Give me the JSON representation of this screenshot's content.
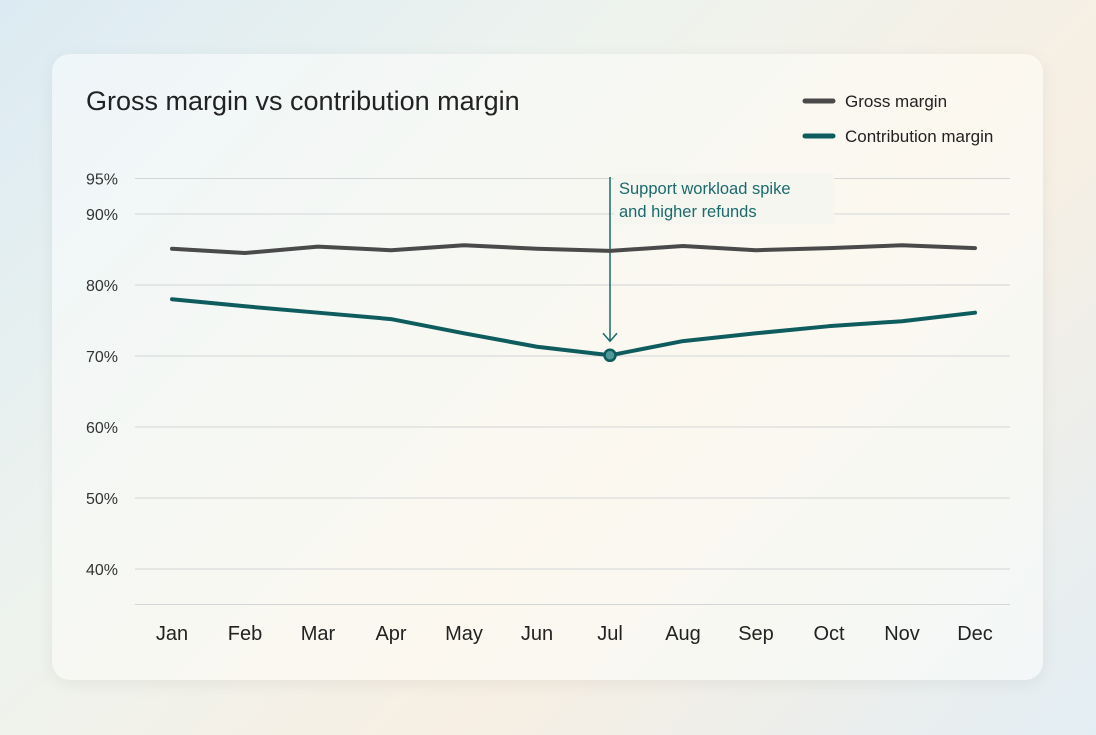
{
  "chart_data": {
    "type": "line",
    "title": "Gross margin vs contribution margin",
    "categories": [
      "Jan",
      "Feb",
      "Mar",
      "Apr",
      "May",
      "Jun",
      "Jul",
      "Aug",
      "Sep",
      "Oct",
      "Nov",
      "Dec"
    ],
    "series": [
      {
        "name": "Gross margin",
        "color": "#4a4a4a",
        "values": [
          85.1,
          84.5,
          85.4,
          84.9,
          85.6,
          85.1,
          84.8,
          85.5,
          84.9,
          85.2,
          85.6,
          85.2
        ]
      },
      {
        "name": "Contribution margin",
        "color": "#0f5c5e",
        "values": [
          78.0,
          77.0,
          76.1,
          75.2,
          73.2,
          71.3,
          70.1,
          72.1,
          73.2,
          74.2,
          74.9,
          76.1
        ]
      }
    ],
    "yticks": [
      95,
      90,
      80,
      70,
      60,
      50,
      40
    ],
    "ytick_labels": [
      "95%",
      "90%",
      "80%",
      "70%",
      "60%",
      "50%",
      "40%"
    ],
    "ylim": [
      35,
      95
    ],
    "grid": true,
    "legend": "top-right",
    "annotation": {
      "category": "Jul",
      "lines": [
        "Support workload spike",
        "and higher refunds"
      ],
      "color": "#1a6a6c"
    }
  }
}
